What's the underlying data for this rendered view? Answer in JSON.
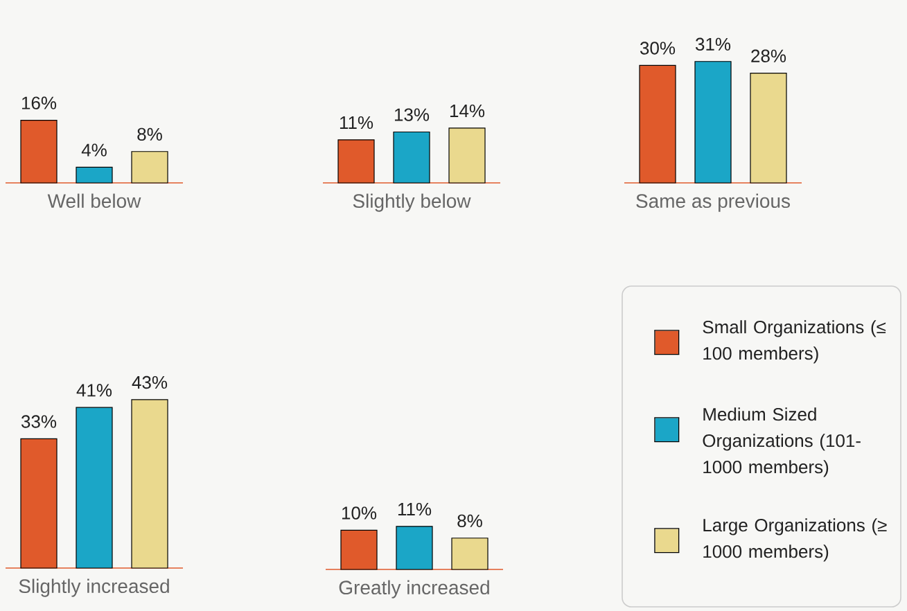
{
  "chart_data": [
    {
      "type": "bar",
      "xlabel": "Well below",
      "categories": [
        null,
        null,
        null
      ],
      "series": [
        {
          "colors": [
            "#e05a2b",
            "#1ba6c7",
            "#ead98e"
          ],
          "values": [
            16,
            4,
            8
          ],
          "value_labels": [
            "16%",
            "4%",
            "8%"
          ]
        }
      ]
    },
    {
      "type": "bar",
      "xlabel": "Slightly below",
      "categories": [
        null,
        null,
        null
      ],
      "series": [
        {
          "colors": [
            "#e05a2b",
            "#1ba6c7",
            "#ead98e"
          ],
          "values": [
            11,
            13,
            14
          ],
          "value_labels": [
            "11%",
            "13%",
            "14%"
          ]
        }
      ]
    },
    {
      "type": "bar",
      "xlabel": "Same as previous",
      "categories": [
        null,
        null,
        null
      ],
      "series": [
        {
          "colors": [
            "#e05a2b",
            "#1ba6c7",
            "#ead98e"
          ],
          "values": [
            30,
            31,
            28
          ],
          "value_labels": [
            "30%",
            "31%",
            "28%"
          ]
        }
      ]
    },
    {
      "type": "bar",
      "xlabel": "Slightly increased",
      "categories": [
        null,
        null,
        null
      ],
      "series": [
        {
          "colors": [
            "#e05a2b",
            "#1ba6c7",
            "#ead98e"
          ],
          "values": [
            33,
            41,
            43
          ],
          "value_labels": [
            "33%",
            "41%",
            "43%"
          ]
        }
      ]
    },
    {
      "type": "bar",
      "xlabel": "Greatly increased",
      "categories": [
        null,
        null,
        null
      ],
      "series": [
        {
          "colors": [
            "#e05a2b",
            "#1ba6c7",
            "#ead98e"
          ],
          "values": [
            10,
            11,
            8
          ],
          "value_labels": [
            "10%",
            "11%",
            "8%"
          ]
        }
      ]
    },
    {
      "type": "other",
      "colors": [
        "#e05a2b",
        "#1ba6c7",
        "#ead98e"
      ],
      "annotations": [
        "Small Organizations (≤ 100 members)",
        "Medium Sized Organizations (101-1000 members)",
        "Large Organizations (≥ 1000 members)"
      ]
    }
  ]
}
